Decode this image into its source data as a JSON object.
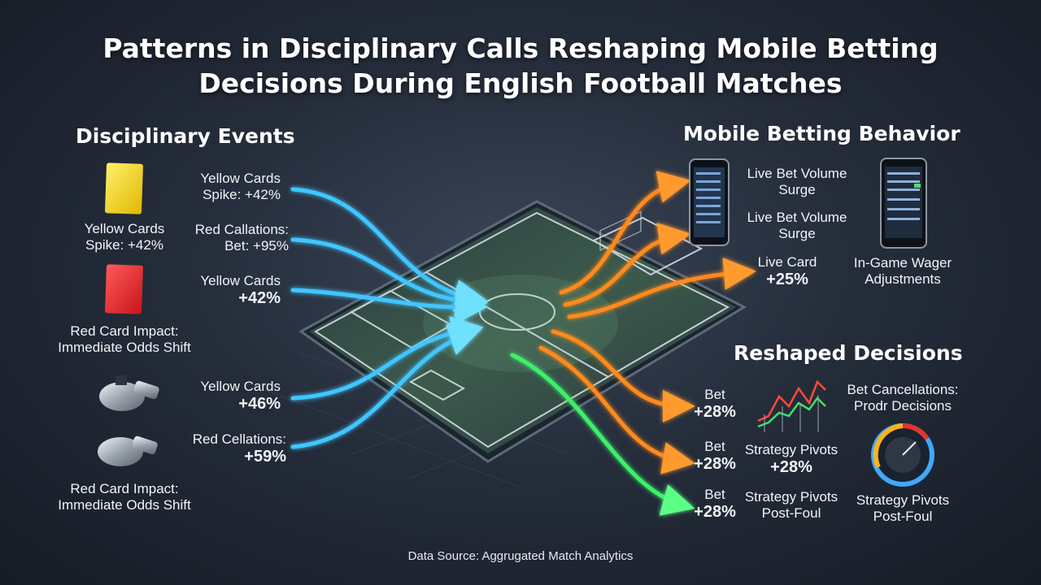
{
  "title_line1": "Patterns in Disciplinary Calls Reshaping Mobile Betting",
  "title_line2": "Decisions During English Football Matches",
  "left_section": "Disciplinary Events",
  "right_section": "Mobile Betting Behavior",
  "decisions_section": "Reshaped Decisions",
  "left_icons": [
    {
      "icon": "yellow-card-icon",
      "line1": "Yellow Cards",
      "line2": "Spike: +42%"
    },
    {
      "icon": "red-card-icon",
      "line1": "Red Card Impact:",
      "line2": "Immediate Odds Shift"
    },
    {
      "icon": "whistle-icon",
      "line1": "Red Card Impact:",
      "line2": "Immediate Odds Shift"
    }
  ],
  "inflows": [
    {
      "line1": "Yellow Cards",
      "line2": "Spike: +42%"
    },
    {
      "line1": "Red Callations:",
      "line2": "Bet: +95%"
    },
    {
      "line1": "Yellow Cards",
      "line2": "+42%"
    },
    {
      "line1": "Yellow Cards",
      "line2": "+46%"
    },
    {
      "line1": "Red Cellations:",
      "line2": "+59%"
    }
  ],
  "behavior": [
    {
      "line1": "Live Bet Volume",
      "line2": "Surge"
    },
    {
      "line1": "Live Bet Volume",
      "line2": "Surge"
    },
    {
      "line1": "Live Card",
      "line2": "+25%"
    },
    {
      "line1": "In-Game Wager",
      "line2": "Adjustments"
    }
  ],
  "decisions": [
    {
      "line1": "Bet",
      "line2": "+28%"
    },
    {
      "line1": "Bet",
      "line2": "+28%"
    },
    {
      "line1": "Bet",
      "line2": "+28%"
    },
    {
      "line1": "Strategy Pivots",
      "line2": "+28%"
    },
    {
      "line1": "Strategy Pivots",
      "line2": "Post-Foul"
    },
    {
      "line1": "Bet Cancellations:",
      "line2": "Prodr Decisions"
    },
    {
      "line1": "Strategy Pivots",
      "line2": "Post-Foul"
    }
  ],
  "source": "Data Source: Aggrugated Match Analytics",
  "colors": {
    "inflow": "#3fc6ff",
    "outflow": "#ff8a1e",
    "green_flow": "#3ef06a",
    "yellow_card": "#f2d31b",
    "red_card": "#e3252c",
    "pitch": "#2f4a45"
  }
}
